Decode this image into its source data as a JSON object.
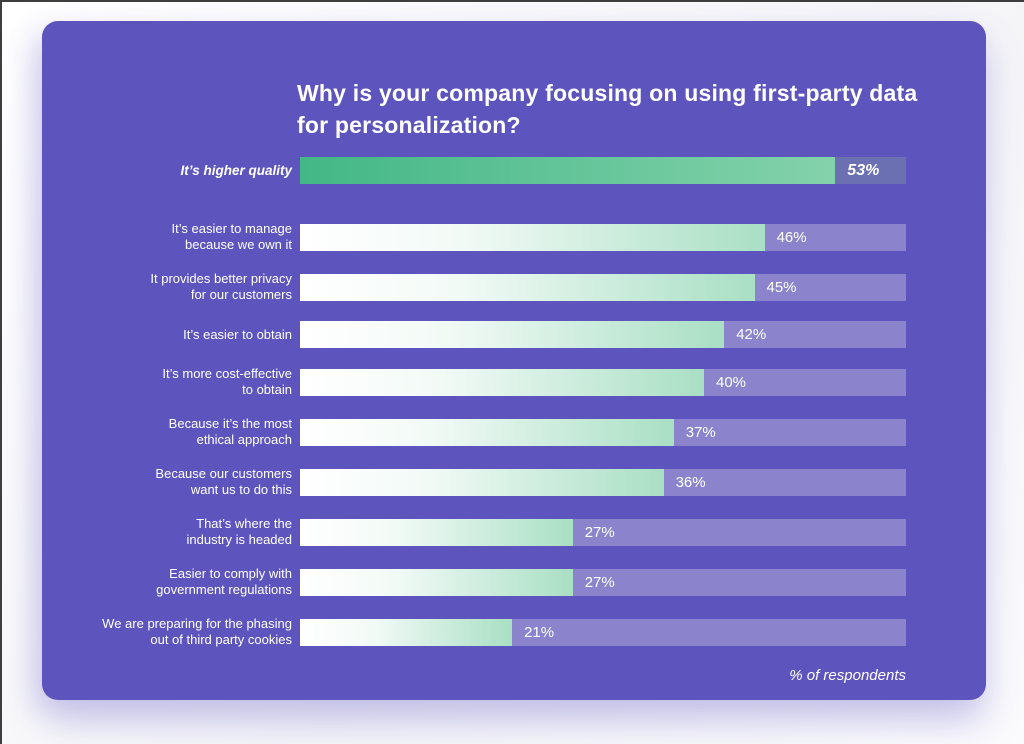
{
  "page": {
    "background_color": "#f7f7fa",
    "card_color": "#5d54bd",
    "track_color": "#8b84cd",
    "highlight_track_color": "#6b70b2",
    "bar_gradient": [
      "#ffffff",
      "#a9dfc4"
    ],
    "highlight_bar_gradient": [
      "#43b786",
      "#84d2ac"
    ],
    "text_color": "#ffffff"
  },
  "header": {
    "title": "Why is your company focusing on using first-party data for personalization?"
  },
  "footer": {
    "label": "% of respondents"
  },
  "chart_data": {
    "type": "bar",
    "orientation": "horizontal",
    "title": "Why is your company focusing on using first-party data for personalization?",
    "categories": [
      "It’s higher quality",
      "It’s easier to manage because we own it",
      "It provides better privacy for our customers",
      "It’s easier to obtain",
      "It’s more cost-effective to obtain",
      "Because it’s the most ethical approach",
      "Because our customers want us to do this",
      "That’s where the industry is headed",
      "Easier to comply with government regulations",
      "We are preparing for the phasing out of third party cookies"
    ],
    "values": [
      53,
      46,
      45,
      42,
      40,
      37,
      36,
      27,
      27,
      21
    ],
    "value_suffix": "%",
    "xlabel": "% of respondents",
    "ylabel": "",
    "xlim": [
      0,
      60
    ],
    "grid": false,
    "legend": false,
    "highlight_index": 0,
    "data_labels": [
      "53%",
      "46%",
      "45%",
      "42%",
      "40%",
      "37%",
      "36%",
      "27%",
      "27%",
      "21%"
    ]
  },
  "rows": [
    {
      "label": "It’s higher quality",
      "value_label": "53%",
      "pct": 53,
      "highlight": true
    },
    {
      "label": "It’s easier to manage\nbecause we own it",
      "value_label": "46%",
      "pct": 46,
      "highlight": false
    },
    {
      "label": "It provides better privacy\nfor our customers",
      "value_label": "45%",
      "pct": 45,
      "highlight": false
    },
    {
      "label": "It’s easier to obtain",
      "value_label": "42%",
      "pct": 42,
      "highlight": false
    },
    {
      "label": "It’s more cost-effective\nto obtain",
      "value_label": "40%",
      "pct": 40,
      "highlight": false
    },
    {
      "label": "Because it’s the most\nethical approach",
      "value_label": "37%",
      "pct": 37,
      "highlight": false
    },
    {
      "label": "Because our customers\nwant us to do this",
      "value_label": "36%",
      "pct": 36,
      "highlight": false
    },
    {
      "label": "That’s where the\nindustry is headed",
      "value_label": "27%",
      "pct": 27,
      "highlight": false
    },
    {
      "label": "Easier to comply with\ngovernment regulations",
      "value_label": "27%",
      "pct": 27,
      "highlight": false
    },
    {
      "label": "We are preparing for the phasing\nout of third party cookies",
      "value_label": "21%",
      "pct": 21,
      "highlight": false
    }
  ]
}
